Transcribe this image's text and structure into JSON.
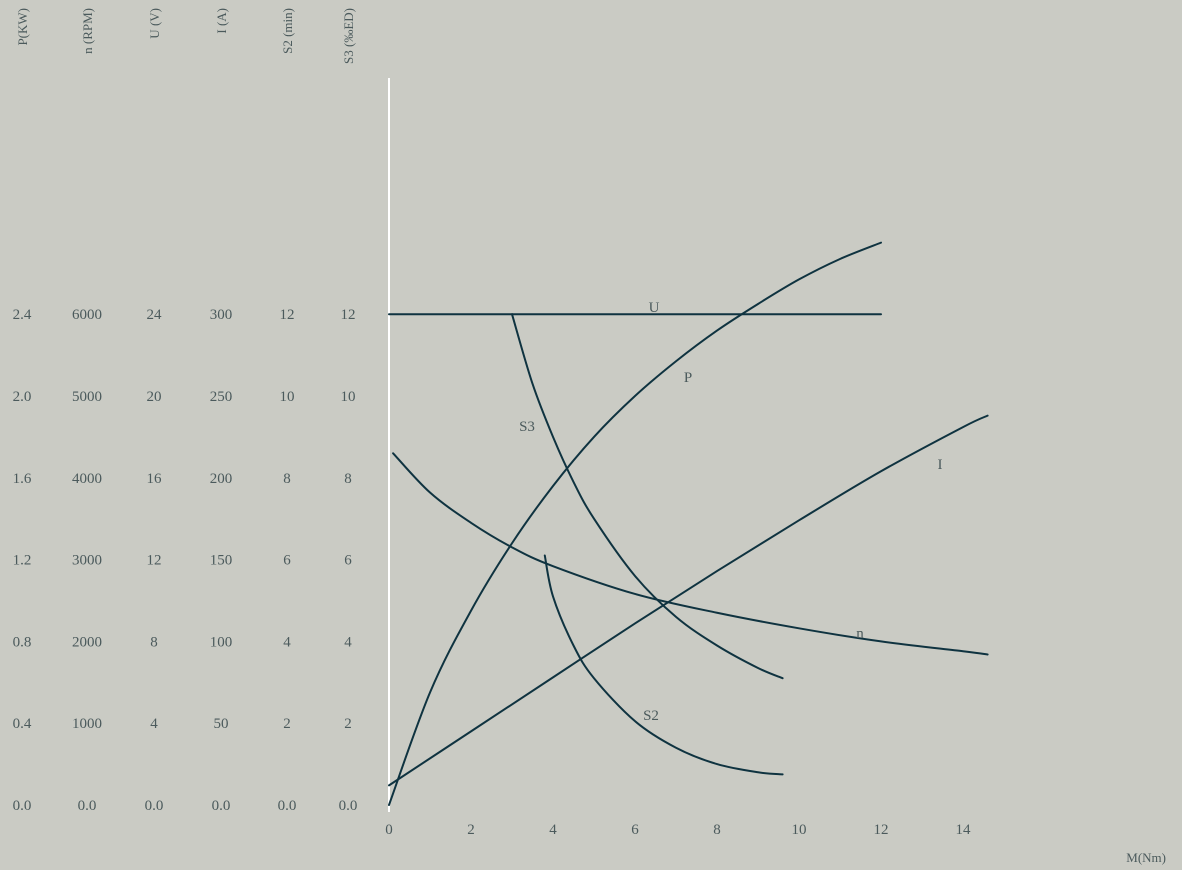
{
  "chart_data": {
    "type": "line",
    "xlabel": "M(Nm)",
    "x_ticks": [
      0,
      2,
      4,
      6,
      8,
      10,
      12,
      14
    ],
    "xlim": [
      0,
      14
    ],
    "y_axes": [
      {
        "title": "P(KW)",
        "ticks": [
          "0.0",
          "0.4",
          "0.8",
          "1.2",
          "1.6",
          "2.0",
          "2.4"
        ]
      },
      {
        "title": "n (RPM)",
        "ticks": [
          "0.0",
          "1000",
          "2000",
          "3000",
          "4000",
          "5000",
          "6000"
        ]
      },
      {
        "title": "U (V)",
        "ticks": [
          "0.0",
          "4",
          "8",
          "12",
          "16",
          "20",
          "24"
        ]
      },
      {
        "title": "I (A)",
        "ticks": [
          "0.0",
          "50",
          "100",
          "150",
          "200",
          "250",
          "300"
        ]
      },
      {
        "title": "S2 (min)",
        "ticks": [
          "0.0",
          "2",
          "4",
          "6",
          "8",
          "10",
          "12"
        ]
      },
      {
        "title": "S3 (‰ED)",
        "ticks": [
          "0.0",
          "2",
          "4",
          "6",
          "8",
          "10",
          "12"
        ]
      }
    ],
    "grid": false,
    "series": [
      {
        "name": "U",
        "axis": "U (V)",
        "points": [
          [
            0,
            24
          ],
          [
            12,
            24
          ]
        ]
      },
      {
        "name": "P",
        "axis": "P(KW)",
        "points": [
          [
            0,
            0
          ],
          [
            1,
            0.55
          ],
          [
            2,
            0.95
          ],
          [
            3,
            1.28
          ],
          [
            4,
            1.56
          ],
          [
            5,
            1.8
          ],
          [
            6,
            2.0
          ],
          [
            7,
            2.17
          ],
          [
            8,
            2.32
          ],
          [
            9,
            2.45
          ],
          [
            10,
            2.57
          ],
          [
            11,
            2.67
          ],
          [
            12,
            2.75
          ]
        ]
      },
      {
        "name": "S3",
        "axis": "S3 (‰ED)",
        "points": [
          [
            3,
            12
          ],
          [
            3.5,
            10.3
          ],
          [
            4,
            9
          ],
          [
            4.5,
            7.9
          ],
          [
            5,
            7
          ],
          [
            6,
            5.6
          ],
          [
            7,
            4.6
          ],
          [
            8,
            3.9
          ],
          [
            9,
            3.35
          ],
          [
            9.6,
            3.1
          ]
        ]
      },
      {
        "name": "I",
        "axis": "I (A)",
        "points": [
          [
            0,
            12
          ],
          [
            2,
            45
          ],
          [
            4,
            78
          ],
          [
            6,
            111
          ],
          [
            8,
            143
          ],
          [
            10,
            174
          ],
          [
            12,
            204
          ],
          [
            14,
            231
          ],
          [
            14.6,
            238
          ]
        ]
      },
      {
        "name": "n",
        "axis": "n (RPM)",
        "points": [
          [
            0.1,
            4300
          ],
          [
            1,
            3820
          ],
          [
            2,
            3450
          ],
          [
            3,
            3150
          ],
          [
            4,
            2920
          ],
          [
            6,
            2580
          ],
          [
            8,
            2350
          ],
          [
            10,
            2160
          ],
          [
            12,
            2000
          ],
          [
            14,
            1880
          ],
          [
            14.6,
            1840
          ]
        ]
      },
      {
        "name": "S2",
        "axis": "S2 (min)",
        "points": [
          [
            3.8,
            6.1
          ],
          [
            4,
            5.1
          ],
          [
            4.5,
            3.9
          ],
          [
            5,
            3.1
          ],
          [
            6,
            2.05
          ],
          [
            7,
            1.4
          ],
          [
            8,
            1.0
          ],
          [
            9,
            0.8
          ],
          [
            9.6,
            0.75
          ]
        ]
      }
    ]
  }
}
